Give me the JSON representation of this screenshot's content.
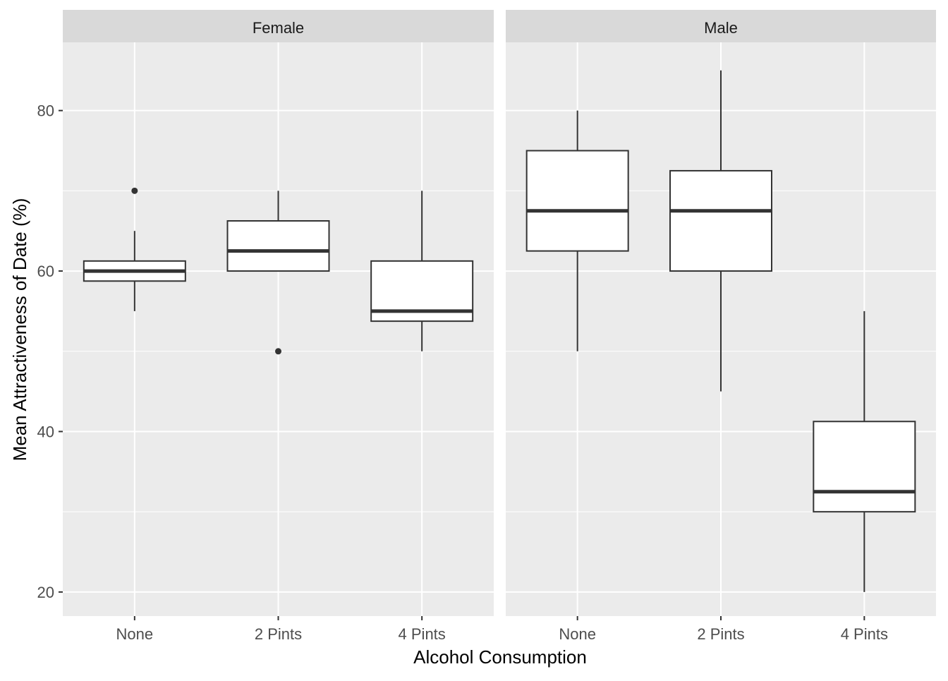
{
  "chart_data": {
    "type": "boxplot",
    "xlabel": "Alcohol Consumption",
    "ylabel": "Mean Attractiveness of Date (%)",
    "categories": [
      "None",
      "2 Pints",
      "4 Pints"
    ],
    "ylim": [
      17,
      88.5
    ],
    "yticks": [
      20,
      40,
      60,
      80
    ],
    "ytick_labels": [
      "20",
      "40",
      "60",
      "80"
    ],
    "grid": true,
    "facets": [
      {
        "name": "Female",
        "boxes": [
          {
            "category": "None",
            "whisker_low": 55,
            "q1": 58.75,
            "median": 60,
            "q3": 61.25,
            "whisker_high": 65,
            "outliers": [
              70
            ]
          },
          {
            "category": "2 Pints",
            "whisker_low": 60,
            "q1": 60,
            "median": 62.5,
            "q3": 66.25,
            "whisker_high": 70,
            "outliers": [
              50
            ]
          },
          {
            "category": "4 Pints",
            "whisker_low": 50,
            "q1": 53.75,
            "median": 55,
            "q3": 61.25,
            "whisker_high": 70,
            "outliers": []
          }
        ]
      },
      {
        "name": "Male",
        "boxes": [
          {
            "category": "None",
            "whisker_low": 50,
            "q1": 62.5,
            "median": 67.5,
            "q3": 75,
            "whisker_high": 80,
            "outliers": []
          },
          {
            "category": "2 Pints",
            "whisker_low": 45,
            "q1": 60,
            "median": 67.5,
            "q3": 72.5,
            "whisker_high": 85,
            "outliers": []
          },
          {
            "category": "4 Pints",
            "whisker_low": 20,
            "q1": 30,
            "median": 32.5,
            "q3": 41.25,
            "whisker_high": 55,
            "outliers": []
          }
        ]
      }
    ],
    "colors": {
      "panel_background": "#ebebeb",
      "strip_background": "#d9d9d9",
      "grid": "#ffffff",
      "box_fill": "#ffffff",
      "box_stroke": "#333333",
      "axis_text": "#4d4d4d",
      "title_text": "#000000",
      "strip_text": "#1a1a1a"
    }
  }
}
